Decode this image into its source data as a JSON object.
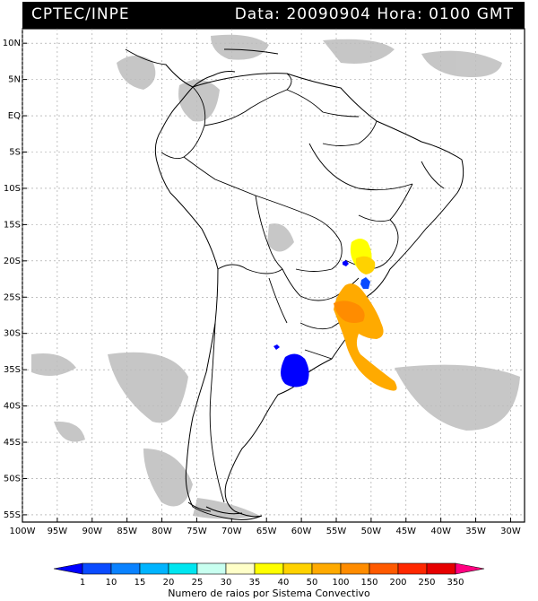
{
  "header": {
    "source": "CPTEC/INPE",
    "datetime": "Data: 20090904 Hora: 0100 GMT"
  },
  "map": {
    "lat_labels": [
      "10N",
      "5N",
      "EQ",
      "5S",
      "10S",
      "15S",
      "20S",
      "25S",
      "30S",
      "35S",
      "40S",
      "45S",
      "50S",
      "55S"
    ],
    "lon_labels": [
      "100W",
      "95W",
      "90W",
      "85W",
      "80W",
      "75W",
      "70W",
      "65W",
      "60W",
      "55W",
      "50W",
      "45W",
      "40W",
      "35W",
      "30W"
    ]
  },
  "legend": {
    "title": "Numero de raios por Sistema Convectivo",
    "values": [
      "1",
      "10",
      "15",
      "20",
      "25",
      "30",
      "35",
      "40",
      "50",
      "100",
      "150",
      "200",
      "250",
      "350"
    ],
    "colors": [
      "#0000ff",
      "#0a4bff",
      "#0a82ff",
      "#00b4ff",
      "#00e6f0",
      "#c8fff0",
      "#ffffc8",
      "#ffff00",
      "#ffd200",
      "#ffaa00",
      "#ff8c00",
      "#ff5a00",
      "#ff2800",
      "#e60000",
      "#ff0080"
    ]
  }
}
